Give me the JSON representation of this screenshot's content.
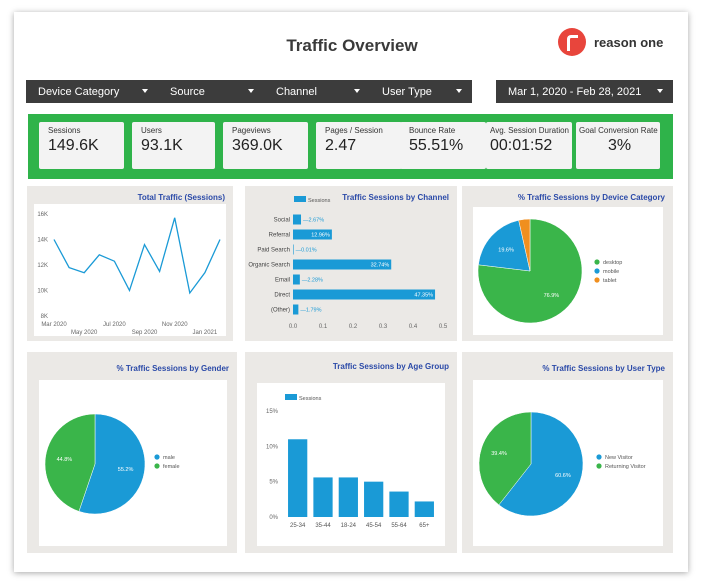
{
  "header": {
    "title": "Traffic Overview",
    "logo_text": "reason one"
  },
  "filters": {
    "device_category": "Device Category",
    "source": "Source",
    "channel": "Channel",
    "user_type": "User Type",
    "date_range": "Mar 1, 2020 - Feb 28, 2021"
  },
  "colors": {
    "kpi_bar": "#2fb34a",
    "blue": "#1a9ad6",
    "green": "#3ab54a",
    "orange": "#f08f1f",
    "title_blue": "#2b4aa8"
  },
  "kpis": [
    {
      "label": "Sessions",
      "value": "149.6K"
    },
    {
      "label": "Users",
      "value": "93.1K"
    },
    {
      "label": "Pageviews",
      "value": "369.0K"
    },
    {
      "label": "Pages / Session",
      "value": "2.47"
    },
    {
      "label": "Bounce Rate",
      "value": "55.51%"
    },
    {
      "label": "Avg. Session Duration",
      "value": "00:01:52"
    },
    {
      "label": "Goal Conversion Rate",
      "value": "3%"
    }
  ],
  "chart_data": [
    {
      "type": "line",
      "title": "Total Traffic (Sessions)",
      "legend": "Sessions",
      "x": [
        "Mar 2020",
        "Apr 2020",
        "May 2020",
        "Jun 2020",
        "Jul 2020",
        "Aug 2020",
        "Sep 2020",
        "Oct 2020",
        "Nov 2020",
        "Dec 2020",
        "Jan 2021",
        "Feb 2021"
      ],
      "x_tick_labels_top": [
        "Mar 2020",
        "Jul 2020",
        "Nov 2020"
      ],
      "x_tick_labels_bottom": [
        "May 2020",
        "Sep 2020",
        "Jan 2021"
      ],
      "values": [
        14000,
        11800,
        11400,
        12800,
        12300,
        10000,
        13600,
        11500,
        15700,
        9800,
        11400,
        14000
      ],
      "yticks": [
        "16K",
        "14K",
        "12K",
        "10K",
        "8K"
      ],
      "ylim": [
        8000,
        16000
      ]
    },
    {
      "type": "bar",
      "orientation": "horizontal",
      "title": "Traffic Sessions by Channel",
      "legend": "Sessions",
      "categories": [
        "Social",
        "Referral",
        "Paid Search",
        "Organic Search",
        "Email",
        "Direct",
        "(Other)"
      ],
      "values": [
        0.0267,
        0.1296,
        0.0001,
        0.3274,
        0.0228,
        0.4735,
        0.0179
      ],
      "data_labels": [
        "2.67%",
        "12.96%",
        "0.01%",
        "32.74%",
        "2.28%",
        "47.35%",
        "1.79%"
      ],
      "xticks": [
        "0.0",
        "0.1",
        "0.2",
        "0.3",
        "0.4",
        "0.5"
      ],
      "xlim": [
        0,
        0.5
      ]
    },
    {
      "type": "pie",
      "title": "% Traffic Sessions by Device Category",
      "categories": [
        "desktop",
        "mobile",
        "tablet"
      ],
      "values": [
        76.9,
        19.6,
        3.5
      ],
      "labels": [
        "76.9%",
        "19.6%",
        ""
      ],
      "colors": [
        "#3ab54a",
        "#1a9ad6",
        "#f08f1f"
      ]
    },
    {
      "type": "pie",
      "title": "% Traffic Sessions by Gender",
      "categories": [
        "male",
        "female"
      ],
      "values": [
        55.2,
        44.8
      ],
      "labels": [
        "55.2%",
        "44.8%"
      ],
      "colors": [
        "#1a9ad6",
        "#3ab54a"
      ]
    },
    {
      "type": "bar",
      "title": "Traffic Sessions by Age Group",
      "legend": "Sessions",
      "categories": [
        "25-34",
        "35-44",
        "18-24",
        "45-54",
        "55-64",
        "65+"
      ],
      "values": [
        0.11,
        0.056,
        0.056,
        0.05,
        0.036,
        0.022
      ],
      "yticks": [
        "15%",
        "10%",
        "5%",
        "0%"
      ],
      "ylim": [
        0,
        0.15
      ]
    },
    {
      "type": "pie",
      "title": "% Traffic Sessions by User Type",
      "categories": [
        "New Visitor",
        "Returning Visitor"
      ],
      "values": [
        60.6,
        39.4
      ],
      "labels": [
        "60.6%",
        "39.4%"
      ],
      "colors": [
        "#1a9ad6",
        "#3ab54a"
      ]
    }
  ]
}
